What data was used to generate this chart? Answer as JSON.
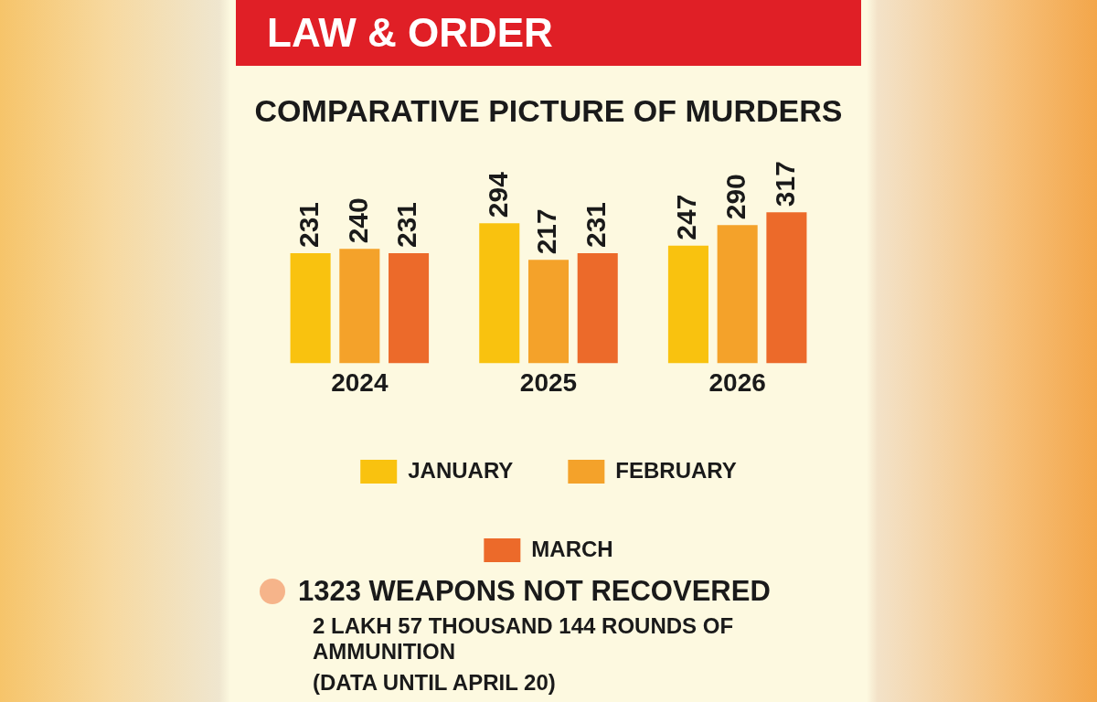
{
  "chart_data": {
    "type": "bar",
    "title": "COMPARATIVE PICTURE OF MURDERS",
    "categories": [
      "2024",
      "2025",
      "2026"
    ],
    "series": [
      {
        "name": "JANUARY",
        "color": "#f9c20f",
        "values": [
          231,
          294,
          247
        ]
      },
      {
        "name": "FEBRUARY",
        "color": "#f4a22a",
        "values": [
          240,
          217,
          290
        ]
      },
      {
        "name": "MARCH",
        "color": "#ec6a2a",
        "values": [
          231,
          231,
          317
        ]
      }
    ],
    "data_labels": true,
    "legend": "bottom",
    "tick_labels": "x",
    "annotations": [
      "LAW & ORDER",
      "1323 WEAPONS NOT RECOVERED",
      "2 LAKH 57 THOUSAND 144 ROUNDS OF AMMUNITION",
      "(DATA UNTIL APRIL 20)"
    ]
  }
}
